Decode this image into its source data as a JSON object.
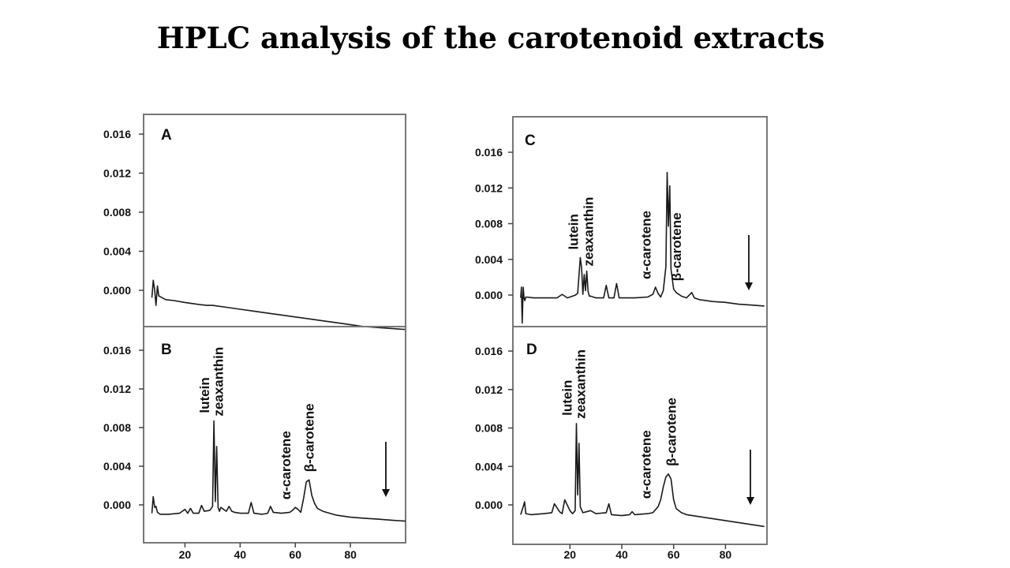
{
  "slide": {
    "title": "HPLC analysis of the carotenoid extracts"
  },
  "chart_data": [
    {
      "type": "line",
      "panel": "A",
      "xlim": [
        5,
        100
      ],
      "ylim": [
        -0.003,
        0.019
      ],
      "yticks": [
        "0.016",
        "0.012",
        "0.008",
        "0.004",
        "0.000"
      ],
      "xticks": [],
      "series": [
        {
          "x": [
            8,
            8.5,
            9,
            9.5,
            10,
            10.5,
            11,
            13,
            16,
            20,
            25,
            28,
            30,
            35,
            40,
            45,
            50,
            55,
            60,
            65,
            70,
            75,
            80,
            85,
            90,
            95,
            100
          ],
          "y": [
            0.0,
            0.0018,
            0.0008,
            -0.0008,
            0.0012,
            0.0002,
            0.0001,
            -0.0002,
            -0.0003,
            -0.0005,
            -0.0007,
            -0.0008,
            -0.0008,
            -0.001,
            -0.0012,
            -0.0014,
            -0.0016,
            -0.0018,
            -0.002,
            -0.0022,
            -0.0024,
            -0.0026,
            -0.0028,
            -0.003,
            -0.0031,
            -0.0032,
            -0.0033
          ]
        }
      ],
      "annotations": []
    },
    {
      "type": "line",
      "panel": "B",
      "xlim": [
        5,
        100
      ],
      "ylim": [
        -0.003,
        0.019
      ],
      "yticks": [
        "0.016",
        "0.012",
        "0.008",
        "0.004",
        "0.000"
      ],
      "xticks": [
        "20",
        "40",
        "60",
        "80"
      ],
      "series": [
        {
          "x": [
            8,
            8.5,
            9,
            9.5,
            10,
            11,
            14,
            18,
            20,
            21,
            22,
            23,
            25,
            26,
            27,
            29,
            30,
            30.5,
            31,
            31.5,
            32,
            32.5,
            33,
            35,
            36,
            37,
            38,
            40,
            42,
            43,
            44,
            45,
            48,
            50,
            51,
            52,
            55,
            58,
            59,
            60,
            61,
            62,
            63,
            64,
            65,
            66,
            67,
            68,
            70,
            75,
            80,
            85,
            90,
            95,
            100
          ],
          "y": [
            0.0,
            0.0017,
            0.0006,
            0.0007,
            0.0001,
            -0.0001,
            -0.0001,
            0.0,
            0.0004,
            0.0,
            0.0005,
            0.0,
            0.0,
            0.0008,
            0.0002,
            0.0003,
            0.0007,
            0.0094,
            0.0012,
            0.0068,
            0.0006,
            0.0002,
            0.0006,
            0.0002,
            0.0007,
            0.0002,
            0.0001,
            0.0,
            0.0,
            0.0,
            0.0011,
            0.0,
            -0.0001,
            0.0,
            0.0007,
            0.0001,
            0.0,
            0.0001,
            0.0003,
            0.0006,
            0.0004,
            0.0001,
            0.0015,
            0.0032,
            0.0034,
            0.0018,
            0.001,
            0.0005,
            0.0002,
            -0.0002,
            -0.0004,
            -0.0005,
            -0.0006,
            -0.0007,
            -0.0008
          ]
        }
      ],
      "annotations": [
        {
          "text": "lutein",
          "x": 30.5
        },
        {
          "text": "zeaxanthin",
          "x": 32
        },
        {
          "text": "α-carotene",
          "x": 60
        },
        {
          "text": "β-carotene",
          "x": 65
        }
      ]
    },
    {
      "type": "line",
      "panel": "C",
      "xlim": [
        -2,
        96
      ],
      "ylim": [
        -0.0032,
        0.0202
      ],
      "yticks": [
        "0.016",
        "0.012",
        "0.008",
        "0.004",
        "0.000"
      ],
      "xticks": [],
      "series": [
        {
          "x": [
            1,
            1.3,
            1.6,
            2,
            2.3,
            2.6,
            3,
            6,
            10,
            15,
            17,
            19,
            20,
            22,
            23,
            24,
            24.5,
            25,
            25.5,
            26,
            26.5,
            27,
            27.5,
            28,
            30,
            33,
            34,
            35,
            37,
            38,
            39,
            42,
            45,
            50,
            52,
            53,
            54,
            55,
            56,
            57,
            57.5,
            58,
            58.5,
            59,
            60,
            61,
            63,
            65,
            67,
            68,
            70,
            75,
            80,
            85,
            90,
            95
          ],
          "y": [
            0.0,
            0.0012,
            -0.0028,
            0.0012,
            0.0,
            -0.0003,
            0.0001,
            0.0,
            0.0,
            0.0,
            0.0004,
            0.0,
            0.0001,
            0.0003,
            0.0005,
            0.0045,
            0.0033,
            0.0004,
            0.0026,
            0.0008,
            0.003,
            0.0007,
            0.0002,
            0.0002,
            0.0,
            0.0,
            0.0014,
            0.0,
            0.0,
            0.0016,
            0.0,
            0.0,
            0.0,
            0.0001,
            0.0004,
            0.0012,
            0.0005,
            0.0001,
            0.0008,
            0.0035,
            0.014,
            0.008,
            0.0125,
            0.0032,
            0.001,
            0.0006,
            0.0002,
            0.0,
            0.0006,
            0.0,
            -0.0002,
            -0.0004,
            -0.0005,
            -0.0007,
            -0.0008,
            -0.0009
          ]
        }
      ],
      "annotations": [
        {
          "text": "lutein",
          "x": 25
        },
        {
          "text": "zeaxanthin",
          "x": 27
        },
        {
          "text": "α-carotene",
          "x": 53
        },
        {
          "text": "β-carotene",
          "x": 61
        }
      ]
    },
    {
      "type": "line",
      "panel": "D",
      "xlim": [
        -2,
        96
      ],
      "ylim": [
        -0.003,
        0.019
      ],
      "yticks": [
        "0.016",
        "0.012",
        "0.008",
        "0.004",
        "0.000"
      ],
      "xticks": [
        "20",
        "40",
        "60",
        "80"
      ],
      "series": [
        {
          "x": [
            1,
            2,
            2.5,
            3,
            5,
            10,
            13,
            14,
            16,
            17,
            18,
            20,
            21,
            22,
            22.5,
            23,
            23.5,
            24,
            25,
            28,
            30,
            34,
            35,
            36,
            40,
            43,
            44,
            45,
            50,
            52,
            54,
            55,
            56,
            57,
            58,
            59,
            60,
            61,
            63,
            65,
            70,
            75,
            80,
            85,
            90,
            95
          ],
          "y": [
            0.0,
            0.0008,
            0.0013,
            0.0001,
            0.0,
            0.0001,
            0.0002,
            0.0011,
            0.0003,
            0.0001,
            0.0015,
            0.0004,
            0.0001,
            0.0004,
            0.0092,
            0.002,
            0.0072,
            0.0008,
            0.0002,
            0.0004,
            0.0001,
            0.0002,
            0.0011,
            0.0,
            -0.0001,
            0.0,
            0.0003,
            0.0,
            0.0001,
            0.0002,
            0.0008,
            0.0015,
            0.0028,
            0.0038,
            0.0041,
            0.0036,
            0.0015,
            0.0006,
            0.0002,
            0.0,
            -0.0002,
            -0.0004,
            -0.0006,
            -0.0008,
            -0.001,
            -0.0012
          ]
        }
      ],
      "annotations": [
        {
          "text": "lutein",
          "x": 22.5
        },
        {
          "text": "zeaxanthin",
          "x": 24
        },
        {
          "text": "α-carotene",
          "x": 53
        },
        {
          "text": "β-carotene",
          "x": 59
        }
      ]
    }
  ]
}
